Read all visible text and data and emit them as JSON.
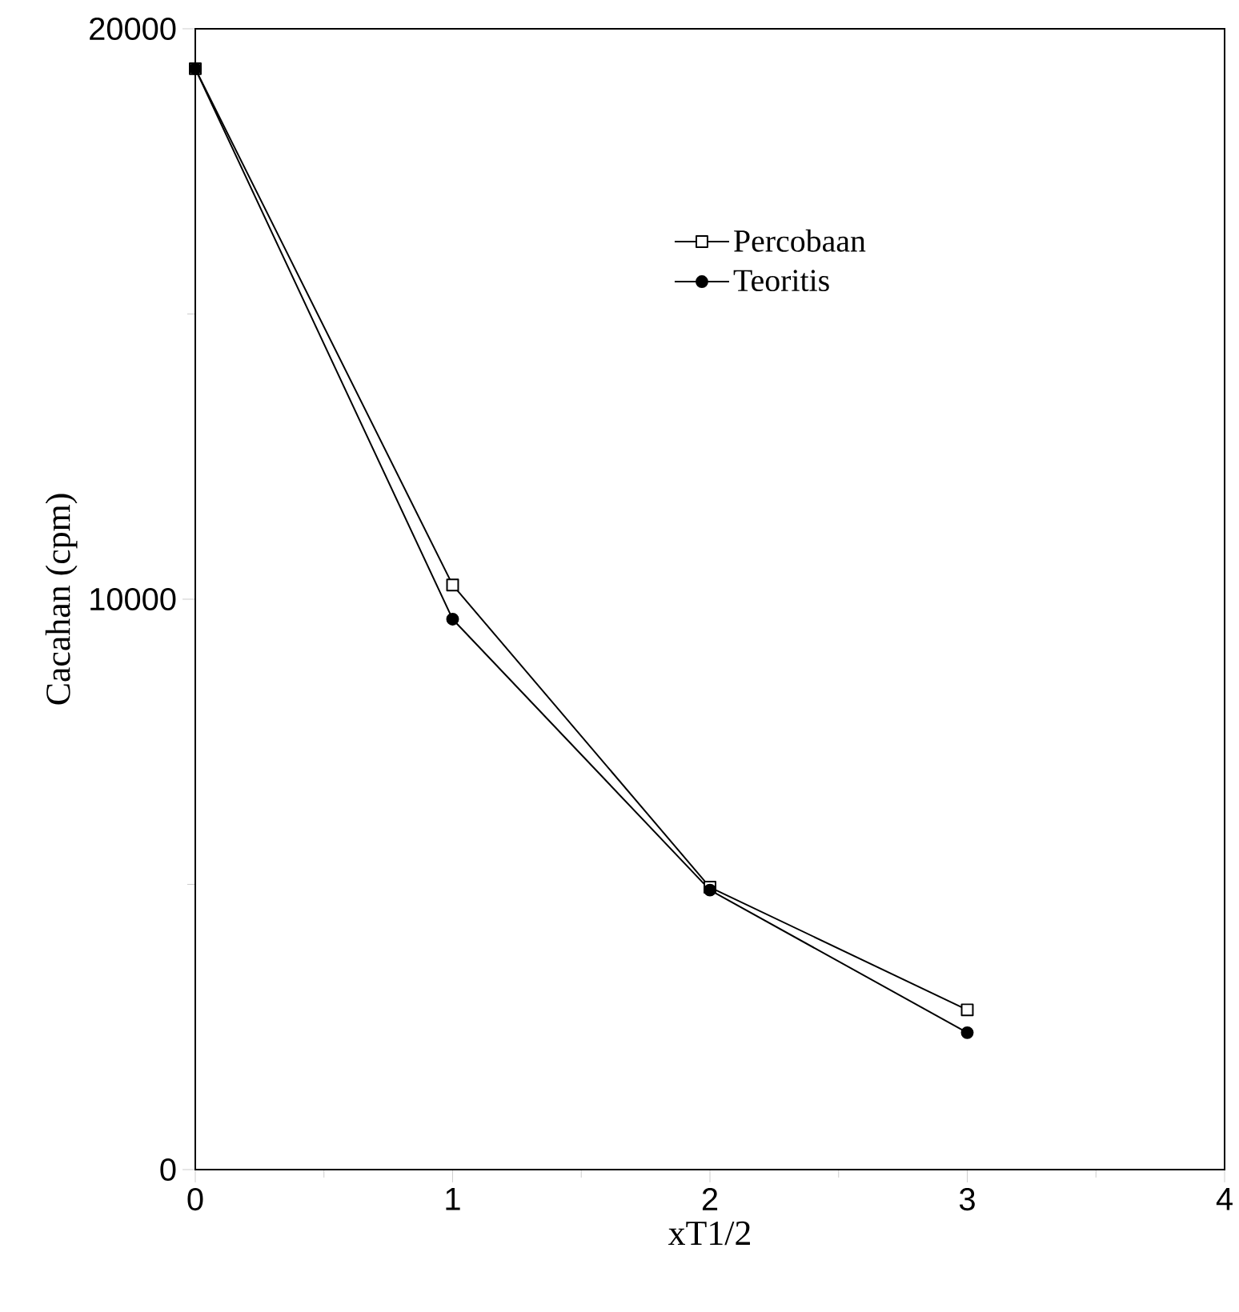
{
  "chart_data": {
    "type": "line",
    "xlabel": "xT1/2",
    "ylabel": "Cacahan (cpm)",
    "x": [
      0,
      1,
      2,
      3
    ],
    "series": [
      {
        "name": "Percobaan",
        "color": "#000000",
        "values": [
          19300,
          10250,
          4950,
          2800
        ],
        "marker": "square"
      },
      {
        "name": "Teoritis",
        "color": "#000000",
        "values": [
          19300,
          9650,
          4900,
          2400
        ],
        "marker": "circle"
      }
    ],
    "xlim": [
      0,
      4
    ],
    "xticks": [
      0,
      1,
      2,
      3,
      4
    ],
    "ylim": [
      0,
      20000
    ],
    "yticks": [
      0,
      10000,
      20000
    ],
    "legend": "top right",
    "line_style": "solid"
  }
}
